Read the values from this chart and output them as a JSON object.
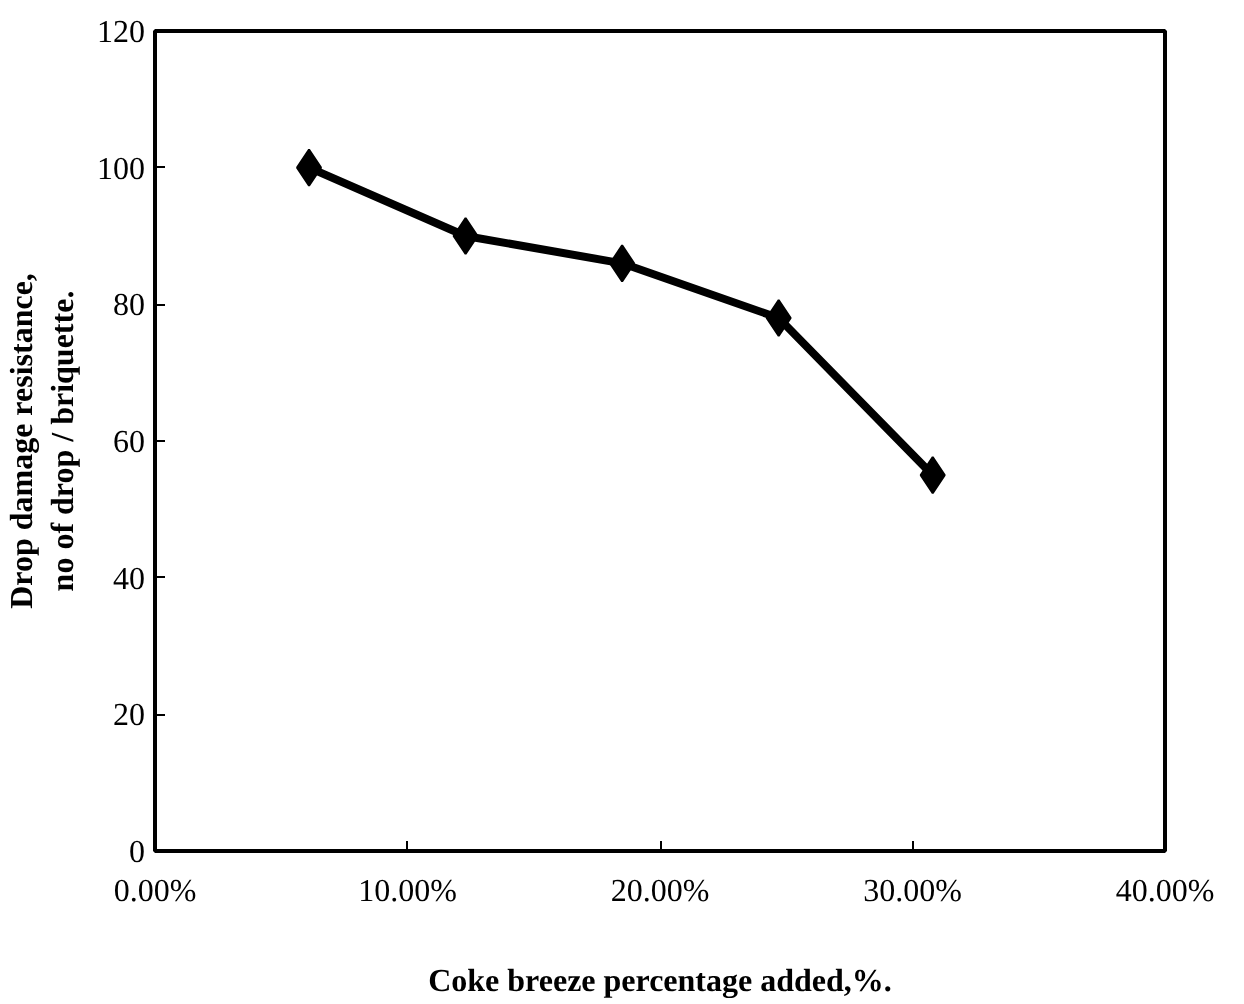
{
  "chart_data": {
    "type": "line",
    "xlabel": "Coke breeze percentage added,%.",
    "ylabel": "Drop damage resistance,\nno of drop / briquette.",
    "x": [
      0.061,
      0.123,
      0.185,
      0.247,
      0.308
    ],
    "series": [
      {
        "color": "#000000",
        "values": [
          100,
          90,
          86,
          78,
          55
        ]
      }
    ],
    "xlim": [
      0,
      0.4
    ],
    "xticks": [
      {
        "value": 0,
        "label": "0.00%"
      },
      {
        "value": 0.1,
        "label": "10.00%"
      },
      {
        "value": 0.2,
        "label": "20.00%"
      },
      {
        "value": 0.3,
        "label": "30.00%"
      },
      {
        "value": 0.4,
        "label": "40.00%"
      }
    ],
    "ylim": [
      0,
      120
    ],
    "yticks": [
      0,
      20,
      40,
      60,
      80,
      100,
      120
    ],
    "marker": "diamond",
    "line_style": "solid",
    "grid": false
  }
}
